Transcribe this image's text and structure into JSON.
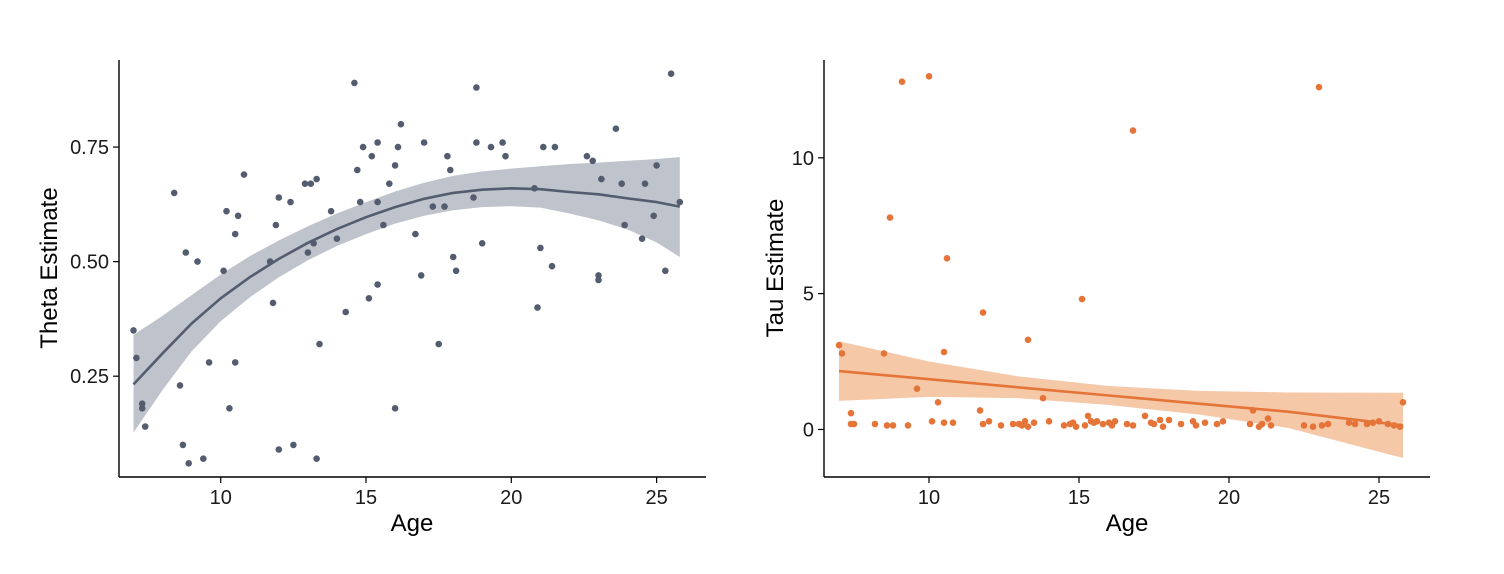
{
  "chart_data": [
    {
      "type": "scatter",
      "title": "",
      "xlabel": "Age",
      "ylabel": "Theta Estimate",
      "xlim": [
        6.5,
        26.7
      ],
      "ylim": [
        0.03,
        0.94
      ],
      "xticks": [
        10,
        15,
        20,
        25
      ],
      "yticks": [
        0.25,
        0.5,
        0.75
      ],
      "ytick_labels": [
        "0.25",
        "0.50",
        "0.75"
      ],
      "grid": false,
      "legend": "none",
      "point_color": "#535D6F",
      "fit_color": "#535D6F",
      "band_color": "#BFC4CC",
      "fit": {
        "x": [
          7.0,
          8.0,
          9.0,
          10.0,
          11.0,
          12.0,
          13.0,
          14.0,
          15.0,
          16.0,
          17.0,
          18.0,
          19.0,
          20.0,
          21.0,
          22.0,
          23.0,
          24.0,
          25.0,
          25.8
        ],
        "y": [
          0.232,
          0.3,
          0.365,
          0.42,
          0.466,
          0.506,
          0.541,
          0.571,
          0.597,
          0.619,
          0.637,
          0.65,
          0.657,
          0.66,
          0.658,
          0.652,
          0.647,
          0.638,
          0.63,
          0.62
        ],
        "lower": [
          0.127,
          0.22,
          0.304,
          0.37,
          0.422,
          0.466,
          0.503,
          0.534,
          0.56,
          0.583,
          0.6,
          0.612,
          0.619,
          0.621,
          0.618,
          0.605,
          0.59,
          0.57,
          0.542,
          0.51
        ],
        "upper": [
          0.34,
          0.382,
          0.427,
          0.472,
          0.512,
          0.546,
          0.577,
          0.605,
          0.63,
          0.653,
          0.672,
          0.687,
          0.697,
          0.703,
          0.708,
          0.713,
          0.716,
          0.72,
          0.724,
          0.728
        ]
      },
      "points": [
        [
          7.0,
          0.35
        ],
        [
          7.1,
          0.29
        ],
        [
          7.3,
          0.19
        ],
        [
          7.3,
          0.18
        ],
        [
          7.4,
          0.14
        ],
        [
          8.4,
          0.65
        ],
        [
          8.6,
          0.23
        ],
        [
          8.7,
          0.1
        ],
        [
          8.8,
          0.52
        ],
        [
          8.9,
          0.06
        ],
        [
          9.2,
          0.5
        ],
        [
          9.4,
          0.07
        ],
        [
          9.6,
          0.28
        ],
        [
          10.1,
          0.48
        ],
        [
          10.2,
          0.61
        ],
        [
          10.3,
          0.18
        ],
        [
          10.5,
          0.56
        ],
        [
          10.5,
          0.28
        ],
        [
          10.6,
          0.6
        ],
        [
          10.8,
          0.69
        ],
        [
          11.7,
          0.5
        ],
        [
          11.8,
          0.41
        ],
        [
          11.9,
          0.58
        ],
        [
          12.0,
          0.64
        ],
        [
          12.0,
          0.09
        ],
        [
          12.4,
          0.63
        ],
        [
          12.5,
          0.1
        ],
        [
          12.9,
          0.67
        ],
        [
          13.0,
          0.52
        ],
        [
          13.1,
          0.67
        ],
        [
          13.2,
          0.54
        ],
        [
          13.3,
          0.68
        ],
        [
          13.3,
          0.07
        ],
        [
          13.4,
          0.32
        ],
        [
          13.8,
          0.61
        ],
        [
          14.0,
          0.55
        ],
        [
          14.3,
          0.39
        ],
        [
          14.6,
          0.89
        ],
        [
          14.7,
          0.7
        ],
        [
          14.8,
          0.63
        ],
        [
          14.9,
          0.75
        ],
        [
          15.1,
          0.42
        ],
        [
          15.2,
          0.73
        ],
        [
          15.4,
          0.63
        ],
        [
          15.4,
          0.45
        ],
        [
          15.4,
          0.76
        ],
        [
          15.6,
          0.58
        ],
        [
          15.8,
          0.67
        ],
        [
          16.0,
          0.18
        ],
        [
          16.0,
          0.71
        ],
        [
          16.1,
          0.75
        ],
        [
          16.2,
          0.8
        ],
        [
          16.7,
          0.56
        ],
        [
          16.9,
          0.47
        ],
        [
          17.0,
          0.76
        ],
        [
          17.3,
          0.62
        ],
        [
          17.5,
          0.32
        ],
        [
          17.7,
          0.62
        ],
        [
          17.8,
          0.73
        ],
        [
          17.9,
          0.7
        ],
        [
          18.0,
          0.51
        ],
        [
          18.1,
          0.48
        ],
        [
          18.7,
          0.64
        ],
        [
          18.8,
          0.88
        ],
        [
          18.8,
          0.76
        ],
        [
          19.0,
          0.54
        ],
        [
          19.3,
          0.75
        ],
        [
          19.7,
          0.76
        ],
        [
          19.8,
          0.73
        ],
        [
          20.8,
          0.66
        ],
        [
          20.9,
          0.4
        ],
        [
          21.0,
          0.53
        ],
        [
          21.1,
          0.75
        ],
        [
          21.4,
          0.49
        ],
        [
          21.5,
          0.75
        ],
        [
          22.6,
          0.73
        ],
        [
          22.8,
          0.72
        ],
        [
          23.0,
          0.47
        ],
        [
          23.0,
          0.46
        ],
        [
          23.1,
          0.68
        ],
        [
          23.6,
          0.79
        ],
        [
          23.8,
          0.67
        ],
        [
          23.9,
          0.58
        ],
        [
          24.5,
          0.55
        ],
        [
          24.6,
          0.67
        ],
        [
          24.9,
          0.6
        ],
        [
          25.0,
          0.71
        ],
        [
          25.3,
          0.48
        ],
        [
          25.5,
          0.91
        ],
        [
          25.8,
          0.63
        ]
      ]
    },
    {
      "type": "scatter",
      "title": "",
      "xlabel": "Age",
      "ylabel": "Tau Estimate",
      "xlim": [
        6.5,
        26.7
      ],
      "ylim": [
        -1.75,
        13.6
      ],
      "xticks": [
        10,
        15,
        20,
        25
      ],
      "yticks": [
        0,
        5,
        10
      ],
      "ytick_labels": [
        "0",
        "5",
        "10"
      ],
      "grid": false,
      "legend": "none",
      "point_color": "#E57438",
      "fit_color": "#E57438",
      "band_color": "#F5C8A8",
      "fit": {
        "x": [
          7.0,
          10.0,
          13.0,
          16.0,
          19.0,
          22.0,
          25.8
        ],
        "y": [
          2.15,
          1.85,
          1.55,
          1.25,
          0.95,
          0.65,
          0.15
        ],
        "lower": [
          1.05,
          1.2,
          1.15,
          0.9,
          0.55,
          0.05,
          -1.05
        ],
        "upper": [
          3.25,
          2.5,
          1.95,
          1.6,
          1.42,
          1.36,
          1.35
        ]
      },
      "points": [
        [
          7.0,
          3.1
        ],
        [
          7.1,
          2.8
        ],
        [
          7.4,
          0.6
        ],
        [
          7.4,
          0.2
        ],
        [
          7.5,
          0.2
        ],
        [
          8.2,
          0.2
        ],
        [
          8.5,
          2.8
        ],
        [
          8.6,
          0.15
        ],
        [
          8.8,
          0.15
        ],
        [
          8.7,
          7.8
        ],
        [
          9.1,
          12.8
        ],
        [
          9.3,
          0.15
        ],
        [
          9.6,
          1.5
        ],
        [
          10.0,
          13.0
        ],
        [
          10.1,
          0.3
        ],
        [
          10.3,
          1.0
        ],
        [
          10.5,
          2.85
        ],
        [
          10.5,
          0.25
        ],
        [
          10.6,
          6.3
        ],
        [
          10.8,
          0.25
        ],
        [
          11.7,
          0.7
        ],
        [
          11.8,
          4.3
        ],
        [
          11.8,
          0.2
        ],
        [
          12.0,
          0.3
        ],
        [
          12.4,
          0.15
        ],
        [
          12.8,
          0.2
        ],
        [
          13.0,
          0.2
        ],
        [
          13.1,
          0.15
        ],
        [
          13.2,
          0.3
        ],
        [
          13.3,
          3.3
        ],
        [
          13.3,
          0.1
        ],
        [
          13.5,
          0.25
        ],
        [
          13.8,
          1.15
        ],
        [
          14.0,
          0.3
        ],
        [
          14.5,
          0.15
        ],
        [
          14.7,
          0.2
        ],
        [
          14.8,
          0.25
        ],
        [
          14.9,
          0.1
        ],
        [
          15.1,
          4.8
        ],
        [
          15.2,
          0.15
        ],
        [
          15.3,
          0.5
        ],
        [
          15.4,
          0.3
        ],
        [
          15.5,
          0.25
        ],
        [
          15.6,
          0.3
        ],
        [
          15.8,
          0.2
        ],
        [
          16.0,
          0.25
        ],
        [
          16.1,
          0.15
        ],
        [
          16.2,
          0.3
        ],
        [
          16.6,
          0.2
        ],
        [
          16.8,
          0.15
        ],
        [
          16.8,
          11.0
        ],
        [
          17.2,
          0.5
        ],
        [
          17.4,
          0.25
        ],
        [
          17.5,
          0.2
        ],
        [
          17.7,
          0.35
        ],
        [
          17.8,
          0.1
        ],
        [
          18.0,
          0.35
        ],
        [
          18.4,
          0.2
        ],
        [
          18.8,
          0.3
        ],
        [
          18.9,
          0.15
        ],
        [
          19.2,
          0.25
        ],
        [
          19.6,
          0.2
        ],
        [
          19.8,
          0.3
        ],
        [
          20.7,
          0.2
        ],
        [
          20.8,
          0.7
        ],
        [
          21.0,
          0.1
        ],
        [
          21.1,
          0.2
        ],
        [
          21.3,
          0.4
        ],
        [
          21.4,
          0.15
        ],
        [
          22.5,
          0.15
        ],
        [
          22.8,
          0.1
        ],
        [
          23.0,
          12.6
        ],
        [
          23.1,
          0.15
        ],
        [
          23.3,
          0.2
        ],
        [
          24.0,
          0.25
        ],
        [
          24.2,
          0.2
        ],
        [
          24.6,
          0.2
        ],
        [
          24.8,
          0.25
        ],
        [
          25.0,
          0.3
        ],
        [
          25.3,
          0.2
        ],
        [
          25.5,
          0.15
        ],
        [
          25.7,
          0.1
        ],
        [
          25.8,
          1.0
        ]
      ]
    }
  ]
}
